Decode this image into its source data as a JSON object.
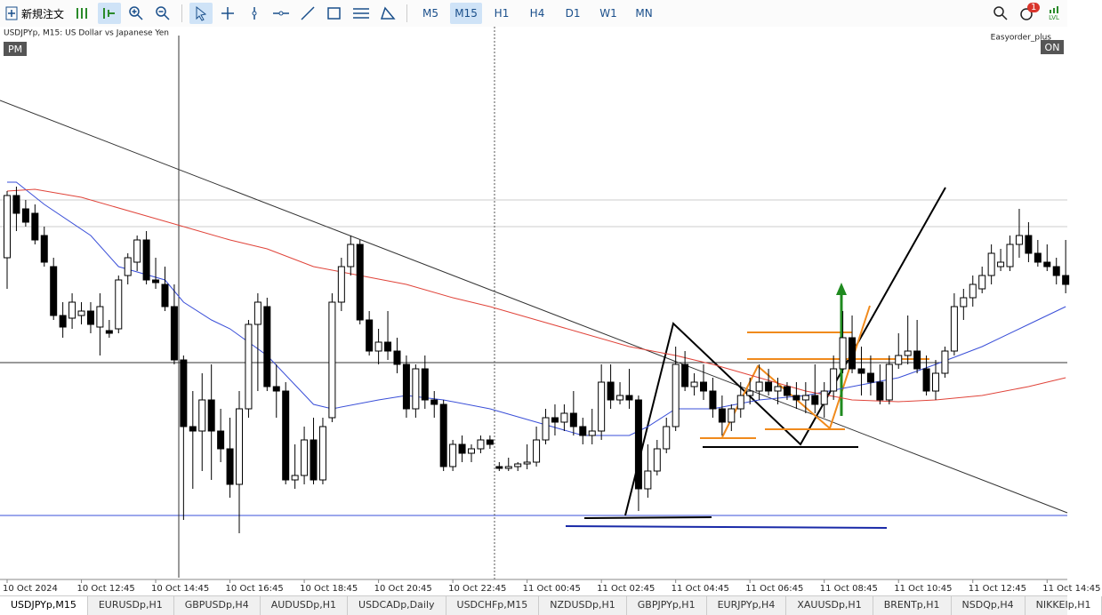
{
  "toolbar": {
    "new_order": "新規注文",
    "timeframes": [
      "M5",
      "M15",
      "H1",
      "H4",
      "D1",
      "W1",
      "MN"
    ],
    "active_timeframe": "M15",
    "notification_count": "1",
    "level_icon": "LVL"
  },
  "chart_data": {
    "type": "candlestick",
    "title": "USDJPYp, M15:  US Dollar vs Japanese Yen",
    "session_badge": "PM",
    "expert_name": "Easyorder_plus",
    "expert_badge": "ON",
    "categories": [
      "10 Oct 2024",
      null,
      null,
      null,
      null,
      null,
      null,
      null,
      "10 Oct 12:45",
      null,
      null,
      null,
      null,
      null,
      null,
      null,
      "10 Oct 14:45",
      null,
      null,
      null,
      null,
      null,
      null,
      null,
      "10 Oct 16:45",
      null,
      null,
      null,
      null,
      null,
      null,
      null,
      "10 Oct 18:45",
      null,
      null,
      null,
      null,
      null,
      null,
      null,
      "10 Oct 20:45",
      null,
      null,
      null,
      null,
      null,
      null,
      null,
      "10 Oct 22:45",
      null,
      null,
      null,
      null,
      null,
      null,
      null,
      "11 Oct 00:45",
      null,
      null,
      null,
      null,
      null,
      null,
      null,
      "11 Oct 02:45",
      null,
      null,
      null,
      null,
      null,
      null,
      null,
      "11 Oct 04:45",
      null,
      null,
      null,
      null,
      null,
      null,
      null,
      "11 Oct 06:45",
      null,
      null,
      null,
      null,
      null,
      null,
      null,
      "11 Oct 08:45",
      null,
      null,
      null,
      null,
      null,
      null,
      null,
      "11 Oct 10:45",
      null,
      null,
      null,
      null,
      null,
      null,
      null,
      "11 Oct 12:45",
      null,
      null,
      null,
      null,
      null,
      null,
      null,
      "11 Oct 14:45",
      null,
      null
    ],
    "open": [
      149.42,
      149.56,
      149.53,
      149.52,
      149.47,
      149.4,
      149.29,
      149.284,
      149.29,
      149.3,
      149.264,
      149.256,
      149.26,
      149.38,
      149.41,
      149.46,
      149.37,
      149.36,
      149.31,
      149.19,
      149.04,
      149.03,
      149.1,
      149.03,
      148.99,
      148.91,
      149.08,
      149.27,
      149.31,
      149.13,
      149.12,
      148.92,
      148.93,
      149.01,
      148.92,
      149.06,
      149.32,
      149.4,
      149.45,
      149.28,
      149.21,
      149.23,
      149.21,
      149.18,
      149.08,
      149.17,
      149.1,
      149.09,
      148.95,
      149.0,
      148.98,
      148.99,
      149.01,
      148.95,
      148.946,
      148.95,
      148.956,
      148.96,
      149.01,
      149.06,
      149.05,
      149.07,
      149.04,
      149.02,
      149.03,
      149.14,
      149.1,
      149.11,
      149.1,
      148.9,
      148.94,
      148.99,
      149.04,
      149.18,
      149.13,
      149.14,
      149.12,
      149.08,
      149.05,
      149.08,
      149.11,
      149.12,
      149.14,
      149.12,
      149.13,
      149.11,
      149.1,
      149.11,
      149.09,
      149.12,
      149.17,
      149.24,
      149.17,
      149.16,
      149.14,
      149.1,
      149.18,
      149.2,
      149.21,
      149.17,
      149.12,
      149.16,
      149.21,
      149.31,
      149.33,
      149.35,
      149.38,
      149.4,
      149.4,
      149.45,
      149.47,
      149.43,
      149.41,
      149.4,
      149.38
    ],
    "high": [
      149.57,
      149.58,
      149.55,
      149.54,
      149.49,
      149.42,
      149.32,
      149.34,
      149.32,
      149.32,
      149.34,
      149.28,
      149.38,
      149.43,
      149.47,
      149.48,
      149.42,
      149.4,
      149.36,
      149.2,
      149.12,
      149.16,
      149.18,
      149.08,
      149.06,
      149.12,
      149.28,
      149.34,
      149.33,
      149.18,
      149.14,
      149.0,
      149.04,
      149.06,
      149.06,
      149.34,
      149.42,
      149.47,
      149.46,
      149.3,
      149.26,
      149.3,
      149.24,
      149.2,
      149.18,
      149.2,
      149.12,
      149.1,
      149.01,
      149.02,
      149.0,
      149.02,
      149.02,
      148.96,
      148.97,
      148.96,
      149.0,
      149.04,
      149.08,
      149.09,
      149.09,
      149.12,
      149.06,
      149.08,
      149.18,
      149.18,
      149.14,
      149.17,
      149.11,
      149.0,
      149.01,
      149.06,
      149.22,
      149.21,
      149.16,
      149.18,
      149.15,
      149.11,
      149.09,
      149.14,
      149.15,
      149.18,
      149.17,
      149.15,
      149.14,
      149.14,
      149.14,
      149.18,
      149.14,
      149.2,
      149.3,
      149.29,
      149.22,
      149.2,
      149.18,
      149.2,
      149.25,
      149.29,
      149.28,
      149.2,
      149.19,
      149.22,
      149.34,
      149.35,
      149.38,
      149.4,
      149.45,
      149.44,
      149.47,
      149.53,
      149.5,
      149.46,
      149.45,
      149.42,
      149.46
    ],
    "low": [
      149.35,
      149.48,
      149.49,
      149.45,
      149.4,
      149.28,
      149.24,
      149.26,
      149.27,
      149.25,
      149.2,
      149.24,
      149.25,
      149.36,
      149.39,
      149.36,
      149.35,
      149.3,
      149.18,
      148.83,
      148.9,
      148.94,
      148.92,
      148.96,
      148.88,
      148.8,
      149.06,
      149.12,
      149.12,
      149.06,
      148.91,
      148.9,
      148.91,
      148.91,
      148.91,
      149.05,
      149.3,
      149.38,
      149.27,
      149.2,
      149.18,
      149.19,
      149.16,
      149.06,
      149.06,
      149.08,
      149.06,
      148.94,
      148.94,
      148.96,
      148.96,
      148.98,
      148.99,
      148.94,
      148.94,
      148.94,
      148.944,
      148.95,
      149.0,
      149.02,
      149.03,
      149.02,
      149.0,
      149.0,
      149.01,
      149.08,
      149.09,
      149.08,
      148.85,
      148.88,
      148.93,
      148.98,
      149.03,
      149.12,
      149.11,
      149.1,
      149.06,
      149.02,
      149.03,
      149.06,
      149.09,
      149.1,
      149.11,
      149.09,
      149.1,
      149.08,
      149.07,
      149.07,
      149.06,
      149.1,
      149.16,
      149.16,
      149.11,
      149.11,
      149.09,
      149.09,
      149.17,
      149.18,
      149.16,
      149.11,
      149.1,
      149.15,
      149.2,
      149.28,
      149.31,
      149.34,
      149.36,
      149.39,
      149.39,
      149.42,
      149.41,
      149.4,
      149.39,
      149.36,
      149.34
    ],
    "close": [
      149.56,
      149.52,
      149.5,
      149.46,
      149.41,
      149.29,
      149.264,
      149.32,
      149.3,
      149.27,
      149.31,
      149.25,
      149.37,
      149.42,
      149.46,
      149.37,
      149.364,
      149.31,
      149.19,
      149.04,
      149.03,
      149.1,
      149.03,
      148.99,
      148.91,
      149.08,
      149.27,
      149.32,
      149.13,
      149.12,
      148.92,
      148.93,
      149.01,
      148.92,
      149.04,
      149.32,
      149.4,
      149.45,
      149.28,
      149.21,
      149.23,
      149.21,
      149.18,
      149.08,
      149.17,
      149.1,
      149.09,
      148.95,
      149.0,
      148.98,
      148.99,
      149.01,
      149.0,
      148.946,
      148.95,
      148.956,
      148.96,
      149.01,
      149.06,
      149.05,
      149.07,
      149.04,
      149.02,
      149.03,
      149.14,
      149.1,
      149.11,
      149.1,
      148.9,
      148.94,
      148.99,
      149.04,
      149.18,
      149.13,
      149.14,
      149.12,
      149.08,
      149.05,
      149.08,
      149.11,
      149.12,
      149.14,
      149.12,
      149.13,
      149.11,
      149.1,
      149.11,
      149.09,
      149.12,
      149.17,
      149.24,
      149.17,
      149.16,
      149.14,
      149.1,
      149.18,
      149.2,
      149.21,
      149.17,
      149.12,
      149.16,
      149.21,
      149.31,
      149.33,
      149.36,
      149.38,
      149.43,
      149.41,
      149.45,
      149.47,
      149.43,
      149.41,
      149.4,
      149.38,
      149.36
    ],
    "up_color": "#ffffff",
    "down_color": "#000000",
    "ylim": [
      148.696,
      149.94
    ],
    "moving_averages": [
      {
        "color": "#3a4fd8",
        "x": [
          0,
          1,
          4,
          9,
          12,
          17,
          19,
          22,
          24,
          28,
          33,
          35,
          40,
          43,
          47,
          52,
          57,
          62,
          67,
          69,
          72,
          76,
          81,
          86,
          91,
          96,
          100,
          105,
          110,
          114
        ],
        "values": [
          149.59,
          149.59,
          149.54,
          149.47,
          149.4,
          149.37,
          149.32,
          149.28,
          149.26,
          149.2,
          149.09,
          149.08,
          149.1,
          149.11,
          149.1,
          149.08,
          149.05,
          149.02,
          149.02,
          149.04,
          149.08,
          149.08,
          149.1,
          149.11,
          149.13,
          149.15,
          149.18,
          149.22,
          149.27,
          149.31
        ]
      },
      {
        "color": "#e0443a",
        "x": [
          0,
          3,
          8,
          14,
          19,
          24,
          28,
          33,
          38,
          43,
          48,
          52,
          57,
          62,
          67,
          72,
          76,
          81,
          86,
          91,
          96,
          100,
          105,
          110,
          114
        ],
        "values": [
          149.57,
          149.574,
          149.556,
          149.52,
          149.49,
          149.46,
          149.44,
          149.4,
          149.38,
          149.36,
          149.33,
          149.31,
          149.28,
          149.25,
          149.22,
          149.2,
          149.18,
          149.15,
          149.12,
          149.1,
          149.096,
          149.1,
          149.11,
          149.13,
          149.15
        ]
      }
    ]
  },
  "tabs": [
    "USDJPYp,M15",
    "EURUSDp,H1",
    "GBPUSDp,H4",
    "AUDUSDp,H1",
    "USDCADp,Daily",
    "USDCHFp,M15",
    "NZDUSDp,H1",
    "GBPJPYp,H1",
    "EURJPYp,H4",
    "XAUUSDp,H1",
    "BRENTp,H1",
    "NSDQp,H4",
    "NIKKEIp,H1"
  ]
}
